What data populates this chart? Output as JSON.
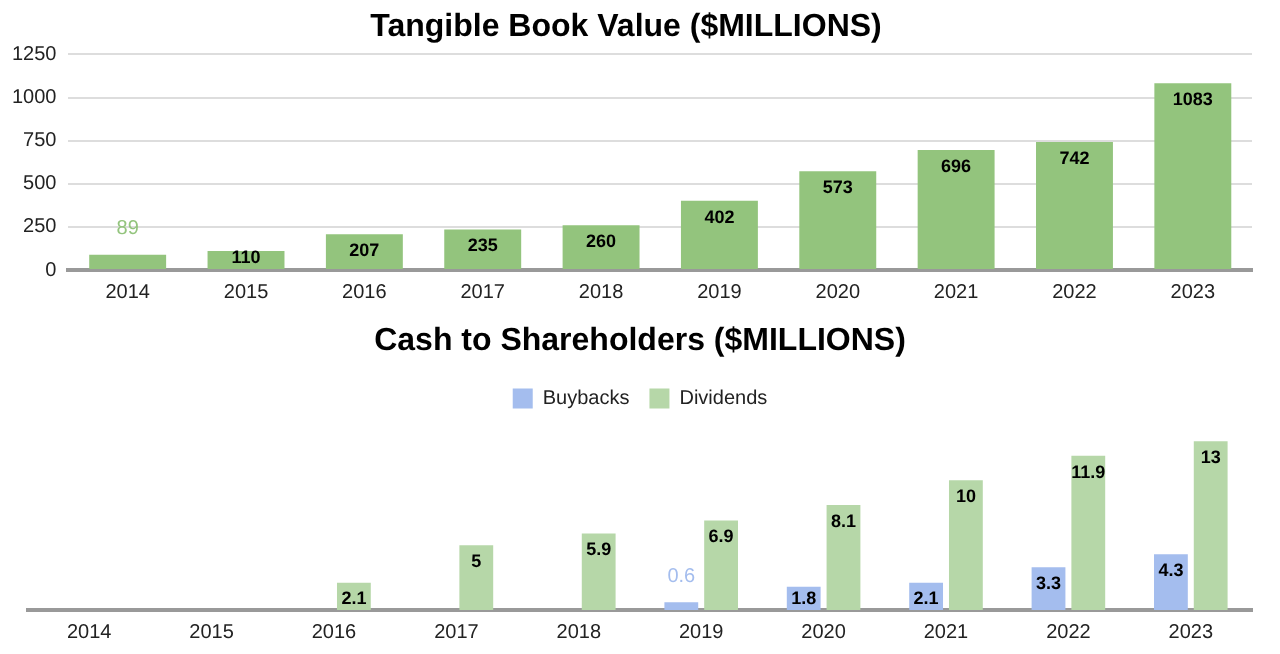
{
  "chart_data": [
    {
      "type": "bar",
      "title": "Tangible Book Value ($MILLIONS)",
      "categories": [
        "2014",
        "2015",
        "2016",
        "2017",
        "2018",
        "2019",
        "2020",
        "2021",
        "2022",
        "2023"
      ],
      "series": [
        {
          "color": "#93c47d",
          "values": [
            89,
            110,
            207,
            235,
            260,
            402,
            573,
            696,
            742,
            1083
          ]
        }
      ],
      "ylim": [
        0,
        1250
      ],
      "yticks": [
        0,
        250,
        500,
        750,
        1000,
        1250
      ],
      "grid": "y",
      "legend": false,
      "data_labels": true
    },
    {
      "type": "bar",
      "title": "Cash to Shareholders ($MILLIONS)",
      "categories": [
        "2014",
        "2015",
        "2016",
        "2017",
        "2018",
        "2019",
        "2020",
        "2021",
        "2022",
        "2023"
      ],
      "series": [
        {
          "name": "Buybacks",
          "color": "#a4bdee",
          "values": [
            null,
            null,
            null,
            null,
            null,
            0.6,
            1.8,
            2.1,
            3.3,
            4.3
          ]
        },
        {
          "name": "Dividends",
          "color": "#b6d7a8",
          "values": [
            null,
            null,
            2.1,
            5,
            5.9,
            6.9,
            8.1,
            10,
            11.9,
            13
          ]
        }
      ],
      "tick_labels": "x",
      "legend": "top",
      "data_labels": true
    }
  ]
}
